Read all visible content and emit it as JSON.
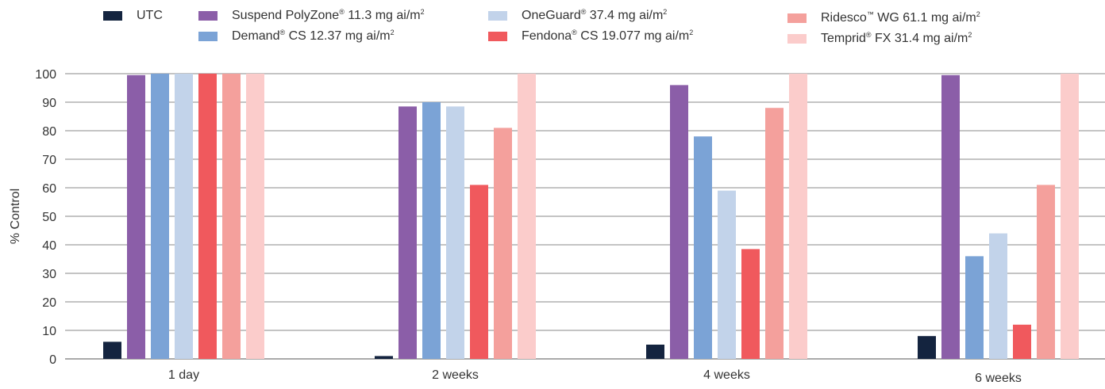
{
  "chart_data": {
    "type": "bar",
    "title": "",
    "xlabel": "",
    "ylabel": "% Control",
    "ylim": [
      0,
      100
    ],
    "yticks": [
      0,
      10,
      20,
      30,
      40,
      50,
      60,
      70,
      80,
      90,
      100
    ],
    "grid": true,
    "legend_position": "top",
    "categories": [
      "1 day",
      "2 weeks",
      "4 weeks",
      "6 weeks"
    ],
    "series": [
      {
        "name": "UTC",
        "color": "#14243f",
        "values": [
          6,
          1,
          5,
          8
        ]
      },
      {
        "name": "Suspend PolyZone® 11.3 mg ai/m²",
        "color": "#8b5ea8",
        "values": [
          99.5,
          88.5,
          96,
          99.5
        ]
      },
      {
        "name": "Demand® CS 12.37 mg ai/m²",
        "color": "#7ba3d6",
        "values": [
          100,
          90,
          78,
          36
        ]
      },
      {
        "name": "OneGuard® 37.4 mg ai/m²",
        "color": "#c2d3ea",
        "values": [
          100,
          88.5,
          59,
          44
        ]
      },
      {
        "name": "Fendona® CS 19.077 mg ai/m²",
        "color": "#f0595d",
        "values": [
          100,
          61,
          38.5,
          12
        ]
      },
      {
        "name": "Ridesco™ WG 61.1 mg ai/m²",
        "color": "#f4a09c",
        "values": [
          100,
          81,
          88,
          61
        ]
      },
      {
        "name": "Temprid® FX 31.4 mg ai/m²",
        "color": "#fbcccb",
        "values": [
          100,
          100,
          100,
          100
        ]
      }
    ]
  }
}
